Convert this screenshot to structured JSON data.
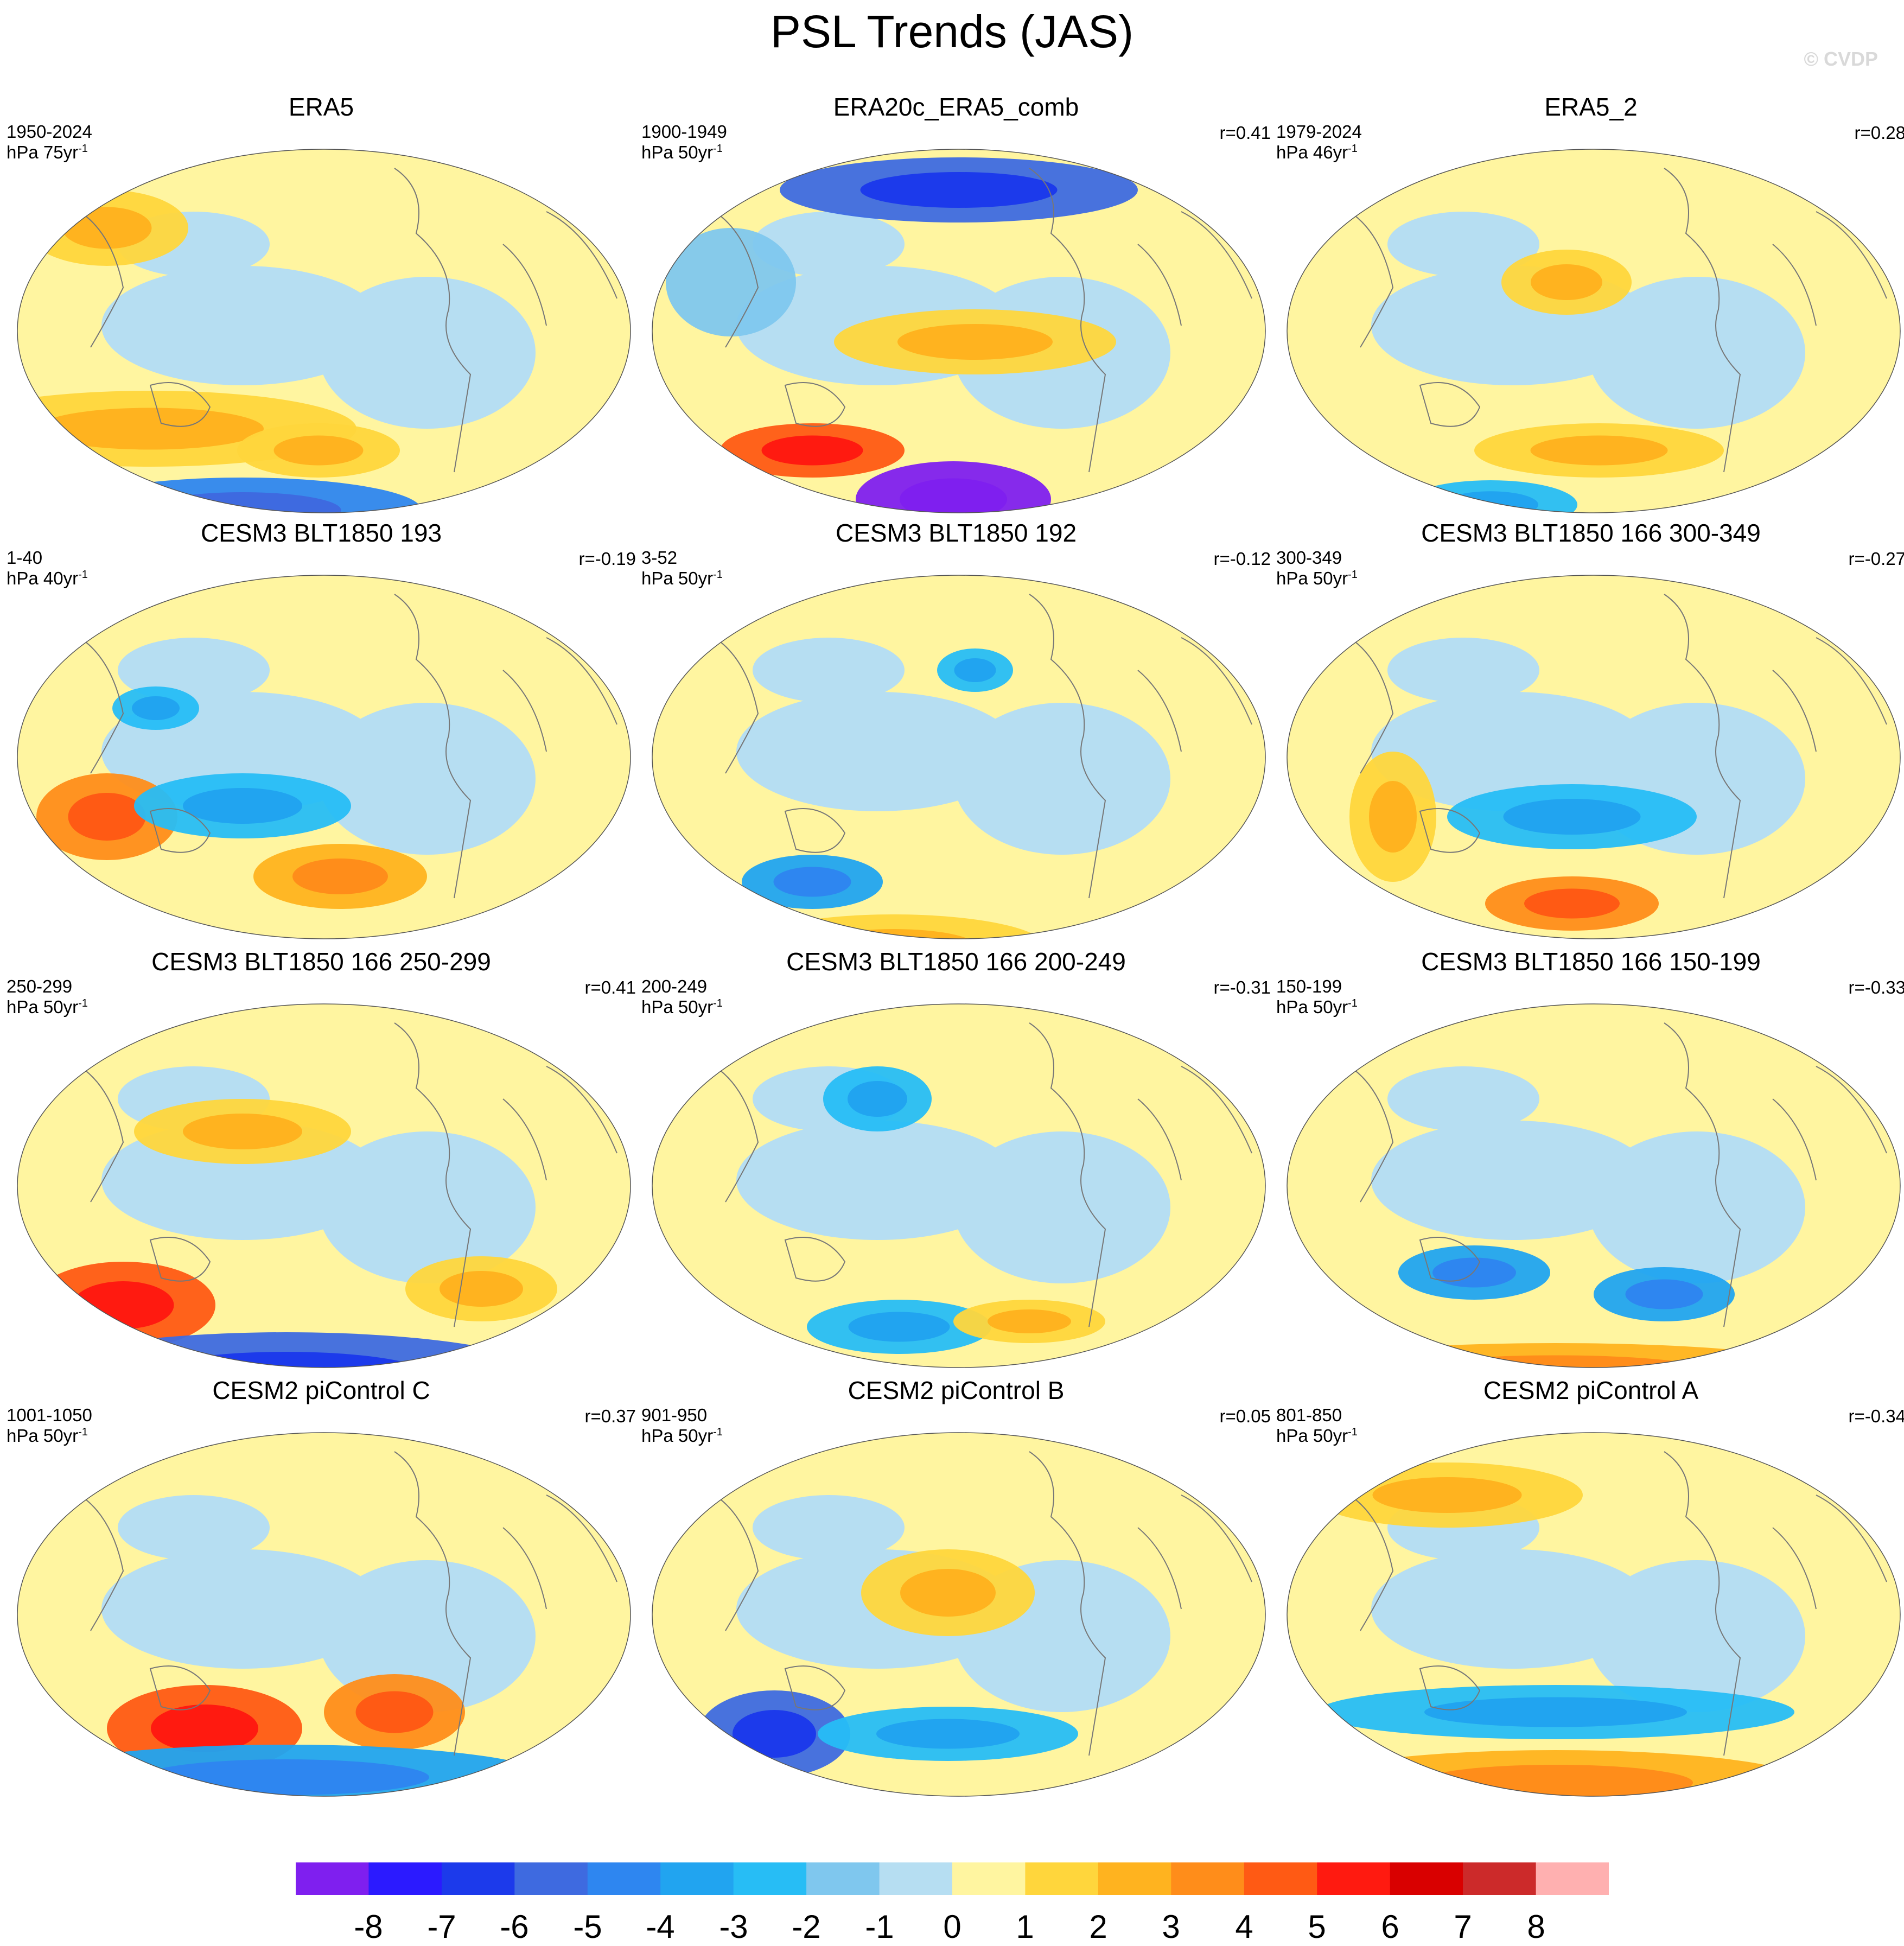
{
  "title": "PSL Trends (JAS)",
  "watermark": "© CVDP",
  "panels": [
    {
      "title": "ERA5",
      "range": "1950-2024",
      "units": "hPa 75yr",
      "units_sup": "-1",
      "corr": ""
    },
    {
      "title": "ERA20c_ERA5_comb",
      "range": "1900-1949",
      "units": "hPa 50yr",
      "units_sup": "-1",
      "corr": "r=0.41"
    },
    {
      "title": "ERA5_2",
      "range": "1979-2024",
      "units": "hPa 46yr",
      "units_sup": "-1",
      "corr": "r=0.28"
    },
    {
      "title": "CESM3 BLT1850 193",
      "range": "1-40",
      "units": "hPa 40yr",
      "units_sup": "-1",
      "corr": "r=-0.19"
    },
    {
      "title": "CESM3 BLT1850 192",
      "range": "3-52",
      "units": "hPa 50yr",
      "units_sup": "-1",
      "corr": "r=-0.12"
    },
    {
      "title": "CESM3 BLT1850 166 300-349",
      "range": "300-349",
      "units": "hPa 50yr",
      "units_sup": "-1",
      "corr": "r=-0.27"
    },
    {
      "title": "CESM3 BLT1850 166 250-299",
      "range": "250-299",
      "units": "hPa 50yr",
      "units_sup": "-1",
      "corr": "r=0.41"
    },
    {
      "title": "CESM3 BLT1850 166 200-249",
      "range": "200-249",
      "units": "hPa 50yr",
      "units_sup": "-1",
      "corr": "r=-0.31"
    },
    {
      "title": "CESM3 BLT1850 166 150-199",
      "range": "150-199",
      "units": "hPa 50yr",
      "units_sup": "-1",
      "corr": "r=-0.33"
    },
    {
      "title": "CESM2 piControl C",
      "range": "1001-1050",
      "units": "hPa 50yr",
      "units_sup": "-1",
      "corr": "r=0.37"
    },
    {
      "title": "CESM2 piControl B",
      "range": "901-950",
      "units": "hPa 50yr",
      "units_sup": "-1",
      "corr": "r=0.05"
    },
    {
      "title": "CESM2 piControl A",
      "range": "801-850",
      "units": "hPa 50yr",
      "units_sup": "-1",
      "corr": "r=-0.34"
    }
  ],
  "colorbar": {
    "labels": [
      "-8",
      "-7",
      "-6",
      "-5",
      "-4",
      "-3",
      "-2",
      "-1",
      "0",
      "1",
      "2",
      "3",
      "4",
      "5",
      "6",
      "7",
      "8"
    ],
    "colors": [
      "#7f1fef",
      "#2b1aff",
      "#1c3aeb",
      "#3e6ae0",
      "#2e86f0",
      "#21a4f0",
      "#27bdf5",
      "#7fc7ee",
      "#b6def2",
      "#fff5a0",
      "#ffd63c",
      "#ffb31f",
      "#ff8d1a",
      "#ff5a14",
      "#ff1a10",
      "#d90000",
      "#cc2a2a",
      "#ffb0b0"
    ]
  }
}
